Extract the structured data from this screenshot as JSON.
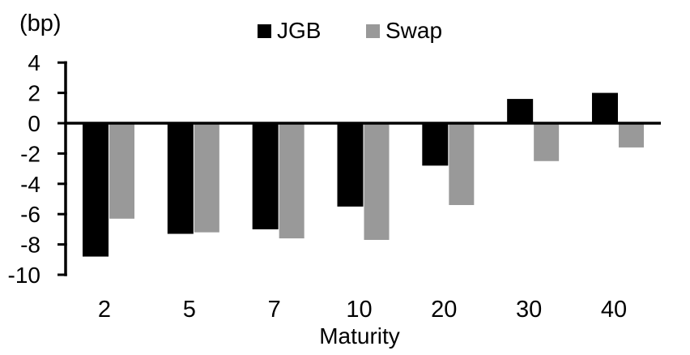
{
  "chart_data": {
    "type": "bar",
    "unit_label": "(bp)",
    "xlabel": "Maturity",
    "categories": [
      "2",
      "5",
      "7",
      "10",
      "20",
      "30",
      "40"
    ],
    "series": [
      {
        "name": "JGB",
        "color": "#000000",
        "values": [
          -8.8,
          -7.3,
          -7.0,
          -5.5,
          -2.8,
          1.6,
          2.0
        ]
      },
      {
        "name": "Swap",
        "color": "#999999",
        "values": [
          -6.3,
          -7.2,
          -7.6,
          -7.7,
          -5.4,
          -2.5,
          -1.6
        ]
      }
    ],
    "yticks": [
      4,
      2,
      0,
      -2,
      -4,
      -6,
      -8,
      -10
    ],
    "ylim": [
      -10,
      4
    ],
    "grid": false,
    "legend_position": "top-center",
    "axis_color": "#000000",
    "background_color": "#ffffff"
  }
}
